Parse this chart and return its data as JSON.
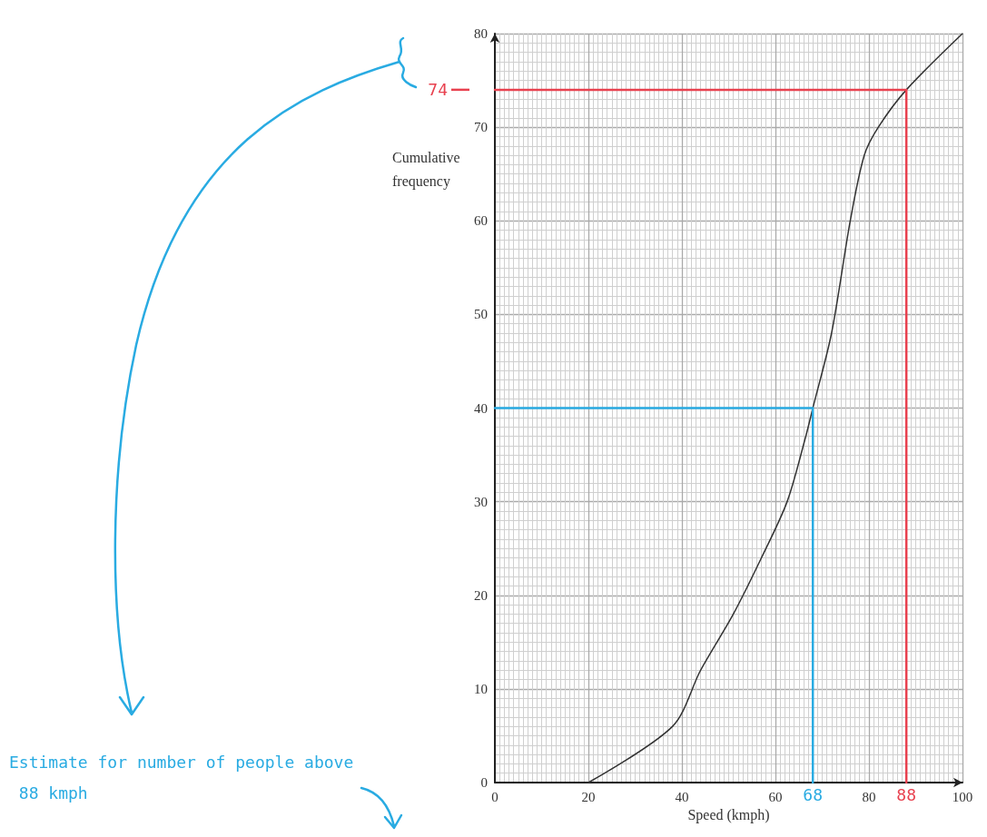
{
  "chart_data": {
    "type": "line",
    "xlabel": "Speed (kmph)",
    "ylabel": "Cumulative frequency",
    "xlim": [
      0,
      100
    ],
    "xticks": [
      0,
      20,
      40,
      60,
      80,
      100
    ],
    "ylim": [
      0,
      80
    ],
    "yticks": [
      0,
      10,
      20,
      30,
      40,
      50,
      60,
      70,
      80
    ],
    "grid": true,
    "marker": "none",
    "line_style": "solid",
    "series": [
      {
        "color": "#333333",
        "x": [
          20,
          38,
          44,
          51,
          57,
          62.5,
          66.5,
          68,
          72,
          76,
          79,
          82,
          88,
          100
        ],
        "values": [
          0,
          6,
          12,
          18,
          24,
          30,
          37,
          40,
          48,
          60,
          67,
          70,
          74,
          80
        ]
      },
      {
        "color": "#29abe2",
        "x": [
          0,
          68,
          68
        ],
        "values": [
          40,
          40,
          0
        ]
      },
      {
        "color": "#e8414f",
        "x": [
          0,
          88,
          88
        ],
        "values": [
          74,
          74,
          0
        ]
      }
    ],
    "annotations": [
      {
        "text": "74",
        "x": 0,
        "y": 74
      },
      {
        "text": "68",
        "x": 68,
        "y": 0
      },
      {
        "text": "88",
        "x": 88,
        "y": 0
      },
      "Estimate for number of people above 88 kmph"
    ]
  }
}
